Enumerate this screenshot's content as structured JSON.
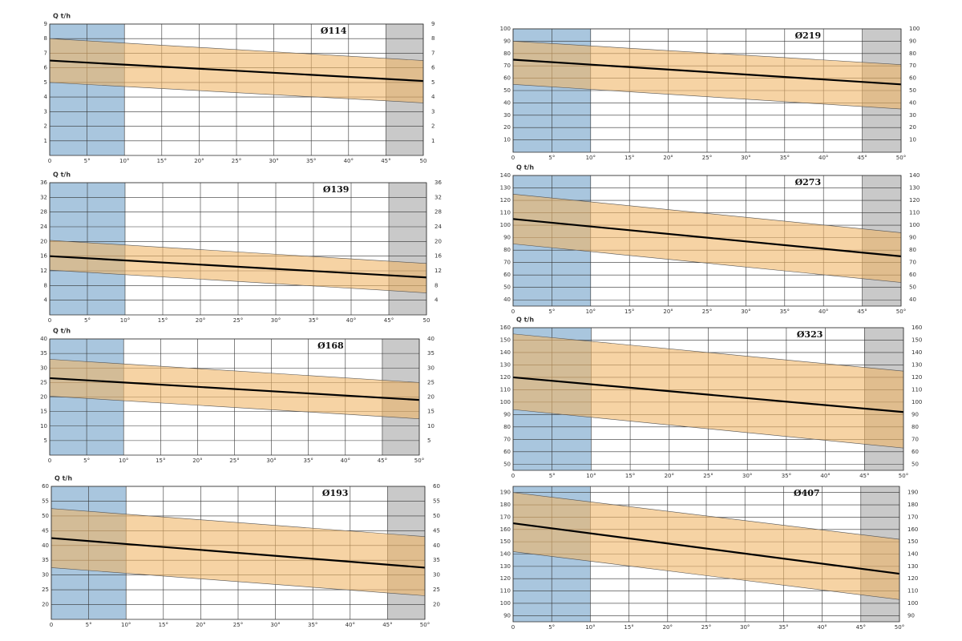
{
  "chart_data": [
    {
      "type": "line",
      "title": "Ø114",
      "y_label": "Q t/h",
      "x": [
        0,
        50
      ],
      "xlim": [
        0,
        50
      ],
      "xticks": [
        0,
        {
          "value": 5,
          "label": "5°"
        },
        {
          "value": 10,
          "label": "10°"
        },
        {
          "value": 15,
          "label": "15°"
        },
        {
          "value": 20,
          "label": "20°"
        },
        {
          "value": 25,
          "label": "25°"
        },
        {
          "value": 30,
          "label": "30°"
        },
        {
          "value": 35,
          "label": "35°"
        },
        {
          "value": 40,
          "label": "40°"
        },
        {
          "value": 45,
          "label": "45°"
        },
        50
      ],
      "ylim": [
        0,
        9
      ],
      "yticks": [
        1,
        2,
        3,
        4,
        5,
        6,
        7,
        8,
        9
      ],
      "grid": true,
      "regions": [
        {
          "from": 0,
          "to": 10,
          "color": "#a9c6de"
        },
        {
          "from": 45,
          "to": 50,
          "color": "#c9c9c9"
        }
      ],
      "band": {
        "color": "#f0b567",
        "upper": [
          8,
          6.5
        ],
        "lower": [
          5,
          3.6
        ]
      },
      "series": [
        {
          "color": "#000000",
          "values": [
            6.5,
            5.1
          ]
        }
      ]
    },
    {
      "type": "line",
      "title": "Ø139",
      "y_label": "Q t/h",
      "x": [
        0,
        50
      ],
      "xlim": [
        0,
        50
      ],
      "xticks": [
        0,
        {
          "value": 5,
          "label": "5°"
        },
        {
          "value": 10,
          "label": "10°"
        },
        {
          "value": 15,
          "label": "15°"
        },
        {
          "value": 20,
          "label": "20°"
        },
        {
          "value": 25,
          "label": "25°"
        },
        {
          "value": 30,
          "label": "30°"
        },
        {
          "value": 35,
          "label": "35°"
        },
        {
          "value": 40,
          "label": "40°"
        },
        {
          "value": 45,
          "label": "45°"
        },
        50
      ],
      "ylim": [
        0,
        36
      ],
      "yticks": [
        4,
        8,
        12,
        16,
        20,
        24,
        28,
        32,
        36
      ],
      "grid": true,
      "regions": [
        {
          "from": 0,
          "to": 10,
          "color": "#a9c6de"
        },
        {
          "from": 45,
          "to": 50,
          "color": "#c9c9c9"
        }
      ],
      "band": {
        "color": "#f0b567",
        "upper": [
          20.3,
          14
        ],
        "lower": [
          12.2,
          6
        ]
      },
      "series": [
        {
          "color": "#000000",
          "values": [
            16,
            10.2
          ]
        }
      ]
    },
    {
      "type": "line",
      "title": "Ø168",
      "y_label": "Q t/h",
      "x": [
        0,
        50
      ],
      "xlim": [
        0,
        50
      ],
      "xticks": [
        0,
        {
          "value": 5,
          "label": "5°"
        },
        {
          "value": 10,
          "label": "10°"
        },
        {
          "value": 15,
          "label": "15°"
        },
        {
          "value": 20,
          "label": "20°"
        },
        {
          "value": 25,
          "label": "25°"
        },
        {
          "value": 30,
          "label": "30°"
        },
        {
          "value": 35,
          "label": "35°"
        },
        {
          "value": 40,
          "label": "40°"
        },
        {
          "value": 45,
          "label": "45°"
        },
        {
          "value": 50,
          "label": "50°"
        }
      ],
      "ylim": [
        0,
        40
      ],
      "yticks": [
        5,
        10,
        15,
        20,
        25,
        30,
        35,
        40
      ],
      "grid": true,
      "regions": [
        {
          "from": 0,
          "to": 10,
          "color": "#a9c6de"
        },
        {
          "from": 45,
          "to": 50,
          "color": "#c9c9c9"
        }
      ],
      "band": {
        "color": "#f0b567",
        "upper": [
          33,
          25
        ],
        "lower": [
          20.3,
          12.5
        ]
      },
      "series": [
        {
          "color": "#000000",
          "values": [
            26.5,
            19
          ]
        }
      ]
    },
    {
      "type": "line",
      "title": "Ø193",
      "y_label": "Q t/h",
      "x": [
        0,
        50
      ],
      "xlim": [
        0,
        50
      ],
      "xticks": [
        0,
        {
          "value": 5,
          "label": "5°"
        },
        {
          "value": 10,
          "label": "10°"
        },
        {
          "value": 15,
          "label": "15°"
        },
        {
          "value": 20,
          "label": "20°"
        },
        {
          "value": 25,
          "label": "25°"
        },
        {
          "value": 30,
          "label": "30°"
        },
        {
          "value": 35,
          "label": "35°"
        },
        {
          "value": 40,
          "label": "40°"
        },
        {
          "value": 45,
          "label": "45°"
        },
        {
          "value": 50,
          "label": "50°"
        }
      ],
      "ylim": [
        15,
        60
      ],
      "yticks": [
        20,
        25,
        30,
        35,
        40,
        45,
        50,
        55,
        60
      ],
      "grid": true,
      "regions": [
        {
          "from": 0,
          "to": 10,
          "color": "#a9c6de"
        },
        {
          "from": 45,
          "to": 50,
          "color": "#c9c9c9"
        }
      ],
      "band": {
        "color": "#f0b567",
        "upper": [
          52.5,
          43
        ],
        "lower": [
          32.5,
          23
        ]
      },
      "series": [
        {
          "color": "#000000",
          "values": [
            42.5,
            32.5
          ]
        }
      ]
    },
    {
      "type": "line",
      "title": "Ø219",
      "x": [
        0,
        50
      ],
      "xlim": [
        0,
        50
      ],
      "xticks": [
        0,
        {
          "value": 5,
          "label": "5°"
        },
        {
          "value": 10,
          "label": "10°"
        },
        {
          "value": 15,
          "label": "15°"
        },
        {
          "value": 20,
          "label": "20°"
        },
        {
          "value": 25,
          "label": "25°"
        },
        {
          "value": 30,
          "label": "30°"
        },
        {
          "value": 35,
          "label": "35°"
        },
        {
          "value": 40,
          "label": "40°"
        },
        {
          "value": 45,
          "label": "45°"
        },
        {
          "value": 50,
          "label": "50°"
        }
      ],
      "ylim": [
        0,
        100
      ],
      "yticks": [
        10,
        20,
        30,
        40,
        50,
        60,
        70,
        80,
        90,
        100
      ],
      "grid": true,
      "regions": [
        {
          "from": 0,
          "to": 10,
          "color": "#a9c6de"
        },
        {
          "from": 45,
          "to": 50,
          "color": "#c9c9c9"
        }
      ],
      "band": {
        "color": "#f0b567",
        "upper": [
          90,
          71
        ],
        "lower": [
          55,
          35
        ]
      },
      "series": [
        {
          "color": "#000000",
          "values": [
            75,
            55
          ]
        }
      ]
    },
    {
      "type": "line",
      "title": "Ø273",
      "y_label": "Q t/h",
      "x": [
        0,
        50
      ],
      "xlim": [
        0,
        50
      ],
      "xticks": [
        0,
        {
          "value": 5,
          "label": "5°"
        },
        {
          "value": 10,
          "label": "10°"
        },
        {
          "value": 15,
          "label": "15°"
        },
        {
          "value": 20,
          "label": "20°"
        },
        {
          "value": 25,
          "label": "25°"
        },
        {
          "value": 30,
          "label": "30°"
        },
        {
          "value": 35,
          "label": "35°"
        },
        {
          "value": 40,
          "label": "40°"
        },
        {
          "value": 45,
          "label": "45°"
        },
        {
          "value": 50,
          "label": "50°"
        }
      ],
      "ylim": [
        35,
        140
      ],
      "yticks": [
        40,
        50,
        60,
        70,
        80,
        90,
        100,
        110,
        120,
        130,
        140
      ],
      "grid": true,
      "regions": [
        {
          "from": 0,
          "to": 10,
          "color": "#a9c6de"
        },
        {
          "from": 45,
          "to": 50,
          "color": "#c9c9c9"
        }
      ],
      "band": {
        "color": "#f0b567",
        "upper": [
          125,
          94
        ],
        "lower": [
          85,
          54
        ]
      },
      "series": [
        {
          "color": "#000000",
          "values": [
            105,
            75
          ]
        }
      ]
    },
    {
      "type": "line",
      "title": "Ø323",
      "y_label": "Q t/h",
      "x": [
        0,
        50
      ],
      "xlim": [
        0,
        50
      ],
      "xticks": [
        0,
        {
          "value": 5,
          "label": "5°"
        },
        {
          "value": 10,
          "label": "10°"
        },
        {
          "value": 15,
          "label": "15°"
        },
        {
          "value": 20,
          "label": "20°"
        },
        {
          "value": 25,
          "label": "25°"
        },
        {
          "value": 30,
          "label": "30°"
        },
        {
          "value": 35,
          "label": "35°"
        },
        {
          "value": 40,
          "label": "40°"
        },
        {
          "value": 45,
          "label": "45°"
        },
        {
          "value": 50,
          "label": "50°"
        }
      ],
      "ylim": [
        45,
        160
      ],
      "yticks": [
        50,
        60,
        70,
        80,
        90,
        100,
        110,
        120,
        130,
        140,
        150,
        160
      ],
      "grid": true,
      "regions": [
        {
          "from": 0,
          "to": 10,
          "color": "#a9c6de"
        },
        {
          "from": 45,
          "to": 50,
          "color": "#c9c9c9"
        }
      ],
      "band": {
        "color": "#f0b567",
        "upper": [
          155,
          125
        ],
        "lower": [
          94,
          63
        ]
      },
      "series": [
        {
          "color": "#000000",
          "values": [
            120,
            92
          ]
        }
      ]
    },
    {
      "type": "line",
      "title": "Ø407",
      "x": [
        0,
        50
      ],
      "xlim": [
        0,
        50
      ],
      "xticks": [
        0,
        {
          "value": 5,
          "label": "5°"
        },
        {
          "value": 10,
          "label": "10°"
        },
        {
          "value": 15,
          "label": "15°"
        },
        {
          "value": 20,
          "label": "20°"
        },
        {
          "value": 25,
          "label": "25°"
        },
        {
          "value": 30,
          "label": "30°"
        },
        {
          "value": 35,
          "label": "35°"
        },
        {
          "value": 40,
          "label": "40°"
        },
        {
          "value": 45,
          "label": "45°"
        },
        {
          "value": 50,
          "label": "50°"
        }
      ],
      "ylim": [
        85,
        195
      ],
      "yticks": [
        90,
        100,
        110,
        120,
        130,
        140,
        150,
        160,
        170,
        180,
        190
      ],
      "grid": true,
      "regions": [
        {
          "from": 0,
          "to": 10,
          "color": "#a9c6de"
        },
        {
          "from": 45,
          "to": 50,
          "color": "#c9c9c9"
        }
      ],
      "band": {
        "color": "#f0b567",
        "upper": [
          190,
          152
        ],
        "lower": [
          142,
          103
        ]
      },
      "series": [
        {
          "color": "#000000",
          "values": [
            165,
            124
          ]
        }
      ]
    }
  ]
}
